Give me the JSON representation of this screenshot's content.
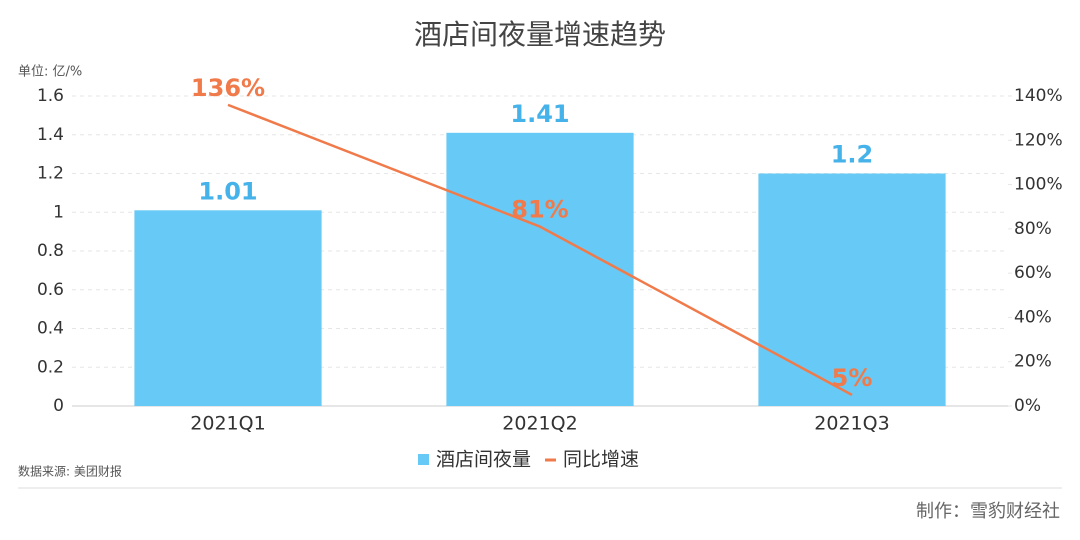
{
  "chart_data": {
    "type": "combo",
    "title": "酒店间夜量增速趋势",
    "unit_label": "单位: 亿/%",
    "source": "数据来源: 美团财报",
    "credit": "制作：雪豹财经社",
    "categories": [
      "2021Q1",
      "2021Q2",
      "2021Q3"
    ],
    "series": [
      {
        "name": "酒店间夜量",
        "type": "bar",
        "color": "#67c9f5",
        "label_color": "#45b2ea",
        "values": [
          1.01,
          1.41,
          1.2
        ]
      },
      {
        "name": "同比增速",
        "type": "line",
        "axis": "y2",
        "color": "#f07a4a",
        "label_color": "#f07a4a",
        "values": [
          136,
          81,
          5
        ],
        "value_labels": [
          "136%",
          "81%",
          "5%"
        ]
      }
    ],
    "ylim": [
      0,
      1.6
    ],
    "yticks": [
      0,
      0.2,
      0.4,
      0.6,
      0.8,
      1,
      1.2,
      1.4,
      1.6
    ],
    "y2lim": [
      0,
      140
    ],
    "y2ticks": [
      {
        "value": 0,
        "label": "0%"
      },
      {
        "value": 20,
        "label": "20%"
      },
      {
        "value": 40,
        "label": "40%"
      },
      {
        "value": 60,
        "label": "60%"
      },
      {
        "value": 80,
        "label": "80%"
      },
      {
        "value": 100,
        "label": "100%"
      },
      {
        "value": 120,
        "label": "120%"
      },
      {
        "value": 140,
        "label": "140%"
      }
    ],
    "grid": true
  }
}
